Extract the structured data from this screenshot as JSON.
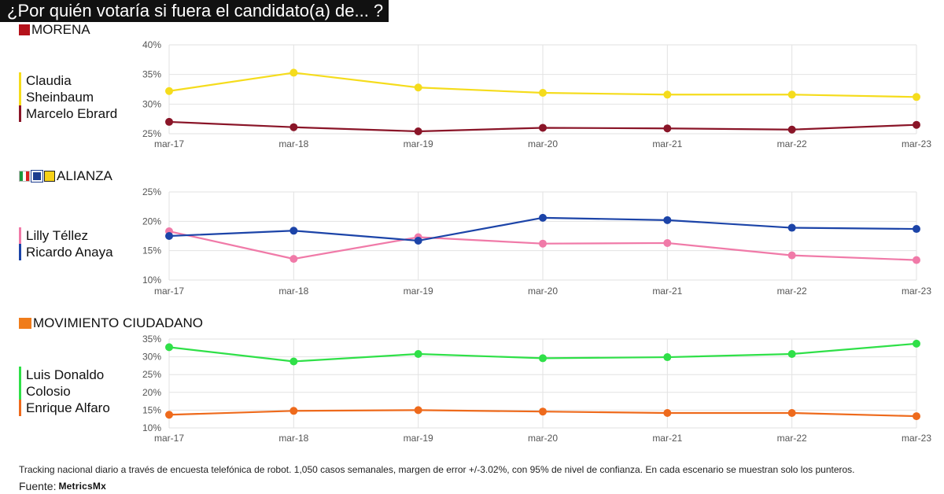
{
  "title": "¿Por quién votaría si fuera el candidato(a) de... ?",
  "footnote": "Tracking nacional diario a través de encuesta telefónica de robot. 1,050 casos semanales, margen de error +/-3.02%, con 95% de nivel de confianza. En cada escenario se muestran solo los punteros.",
  "source": {
    "label": "Fuente:",
    "brand": "MetricsMx",
    "logo_icon": "metricsmx-logo-icon"
  },
  "chart_data": [
    {
      "type": "line",
      "party": "MORENA",
      "party_icon": "morena-logo-icon",
      "x": [
        "mar-17",
        "mar-18",
        "mar-19",
        "mar-20",
        "mar-21",
        "mar-22",
        "mar-23"
      ],
      "ylim": [
        25,
        40
      ],
      "yticks": [
        "25%",
        "30%",
        "35%",
        "40%"
      ],
      "grid": true,
      "series": [
        {
          "name": "Claudia Sheinbaum",
          "label_lines": [
            "Claudia",
            "Sheinbaum"
          ],
          "color": "#f5dc1c",
          "values": [
            32.2,
            35.3,
            32.8,
            31.9,
            31.6,
            31.6,
            31.2
          ]
        },
        {
          "name": "Marcelo Ebrard",
          "label_lines": [
            "Marcelo Ebrard"
          ],
          "color": "#8a1528",
          "values": [
            27.0,
            26.1,
            25.4,
            26.0,
            25.9,
            25.7,
            26.5
          ]
        }
      ]
    },
    {
      "type": "line",
      "party": "ALIANZA",
      "party_icon": "alianza-logos-icon",
      "x": [
        "mar-17",
        "mar-18",
        "mar-19",
        "mar-20",
        "mar-21",
        "mar-22",
        "mar-23"
      ],
      "ylim": [
        10,
        25
      ],
      "yticks": [
        "10%",
        "15%",
        "20%",
        "25%"
      ],
      "grid": true,
      "series": [
        {
          "name": "Lilly Téllez",
          "label_lines": [
            "Lilly Téllez"
          ],
          "color": "#f07aa8",
          "values": [
            18.3,
            13.6,
            17.3,
            16.2,
            16.3,
            14.2,
            13.4
          ]
        },
        {
          "name": "Ricardo Anaya",
          "label_lines": [
            "Ricardo Anaya"
          ],
          "color": "#1c44a8",
          "values": [
            17.5,
            18.4,
            16.7,
            20.6,
            20.2,
            18.9,
            18.7
          ]
        }
      ]
    },
    {
      "type": "line",
      "party": "MOVIMIENTO CIUDADANO",
      "party_icon": "mc-logo-icon",
      "x": [
        "mar-17",
        "mar-18",
        "mar-19",
        "mar-20",
        "mar-21",
        "mar-22",
        "mar-23"
      ],
      "ylim": [
        10,
        35
      ],
      "yticks": [
        "10%",
        "15%",
        "20%",
        "25%",
        "30%",
        "35%"
      ],
      "grid": true,
      "series": [
        {
          "name": "Luis Donaldo Colosio",
          "label_lines": [
            "Luis Donaldo",
            "Colosio"
          ],
          "color": "#2fe048",
          "values": [
            32.7,
            28.7,
            30.8,
            29.6,
            29.9,
            30.8,
            33.7
          ]
        },
        {
          "name": "Enrique Alfaro",
          "label_lines": [
            "Enrique Alfaro"
          ],
          "color": "#ee6a1c",
          "values": [
            13.7,
            14.8,
            15.0,
            14.6,
            14.2,
            14.2,
            13.3
          ]
        }
      ]
    }
  ]
}
